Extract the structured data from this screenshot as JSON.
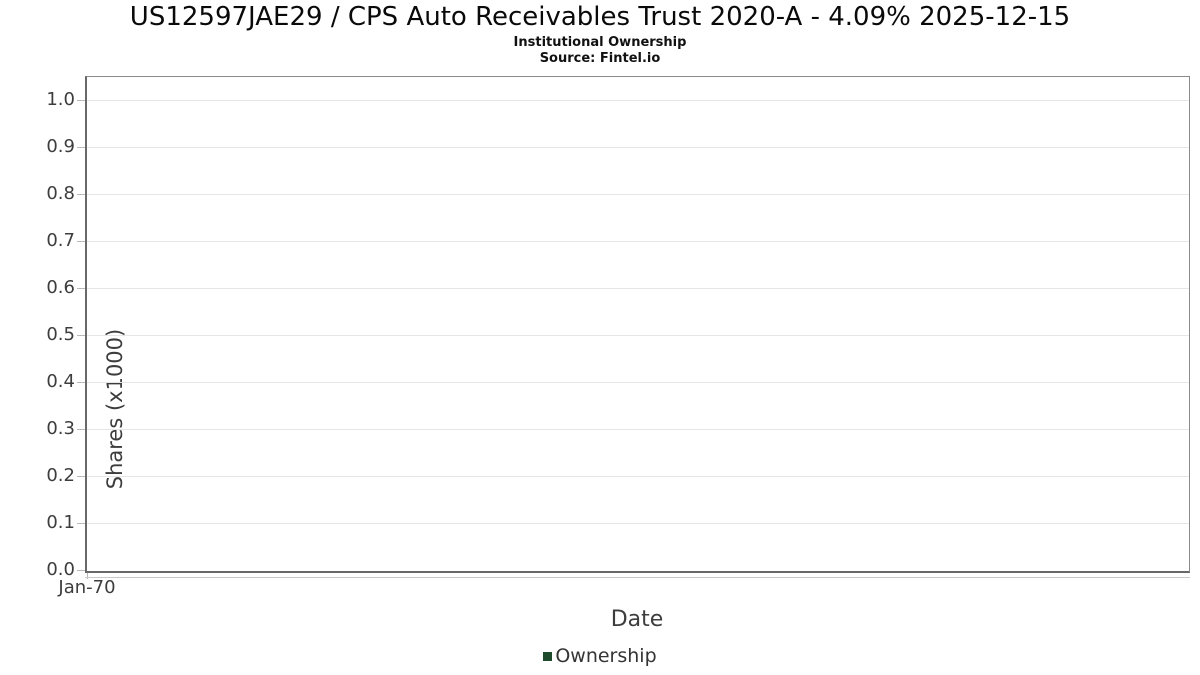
{
  "chart": {
    "title": "US12597JAE29 / CPS Auto Receivables Trust 2020-A - 4.09% 2025-12-15",
    "subtitle": "Institutional Ownership",
    "source": "Source: Fintel.io"
  },
  "chart_data": {
    "type": "line",
    "title": "US12597JAE29 / CPS Auto Receivables Trust 2020-A - 4.09% 2025-12-15",
    "subtitle": "Institutional Ownership",
    "source": "Source: Fintel.io",
    "xlabel": "Date",
    "ylabel": "Shares (x1000)",
    "ylim": [
      0.0,
      1.0
    ],
    "y_ticks": [
      0.0,
      0.1,
      0.2,
      0.3,
      0.4,
      0.5,
      0.6,
      0.7,
      0.8,
      0.9,
      1.0
    ],
    "y_tick_decimals": 1,
    "x_ticks": [
      "Jan-70"
    ],
    "grid": "horizontal",
    "legend_position": "bottom",
    "series": [
      {
        "name": "Ownership",
        "color": "#1d4b2c",
        "x": [],
        "y": []
      }
    ]
  }
}
